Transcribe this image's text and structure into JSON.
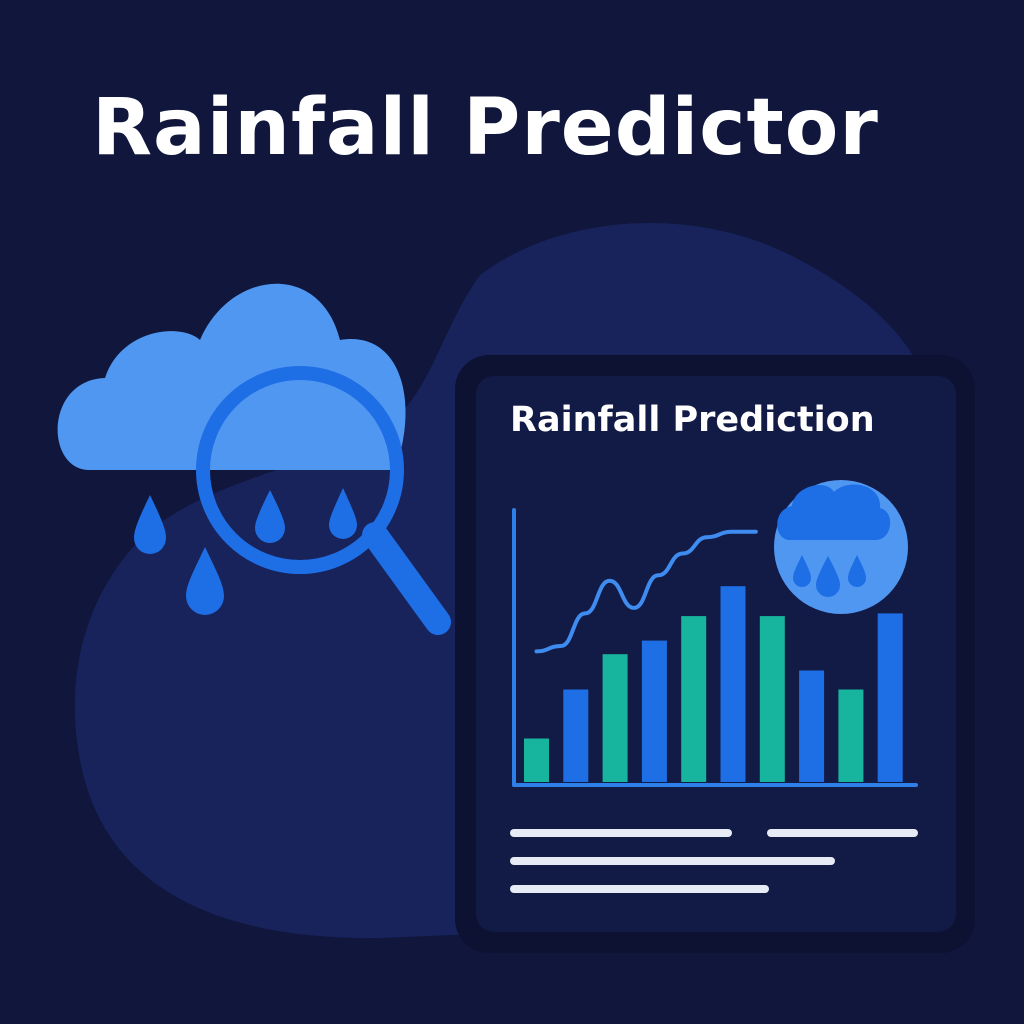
{
  "header": {
    "title": "Rainfall Predictor"
  },
  "card": {
    "title": "Rainfall Prediction"
  },
  "icons": {
    "hero": [
      "cloud-icon",
      "magnifier-icon",
      "raindrop-icon"
    ],
    "badge": "rain-cloud-icon"
  },
  "colors": {
    "background": "#10163c",
    "blob": "#17235a",
    "card_frame": "#0d1232",
    "card_inner": "#121a46",
    "cloud": "#4f97f0",
    "accent_blue": "#1e6ee6",
    "accent_teal": "#17b59e",
    "text": "#ffffff"
  },
  "chart_data": {
    "type": "bar",
    "values": [
      0.16,
      0.34,
      0.47,
      0.52,
      0.61,
      0.72,
      0.61,
      0.41,
      0.34,
      0.62
    ],
    "bar_colors": [
      "teal",
      "blue",
      "teal",
      "blue",
      "teal",
      "blue",
      "teal",
      "blue",
      "teal",
      "blue"
    ],
    "trend_line": [
      0.48,
      0.5,
      0.62,
      0.74,
      0.64,
      0.76,
      0.84,
      0.9,
      0.92,
      0.92
    ],
    "ylim": [
      0,
      1
    ],
    "grid": false,
    "legend": false
  }
}
